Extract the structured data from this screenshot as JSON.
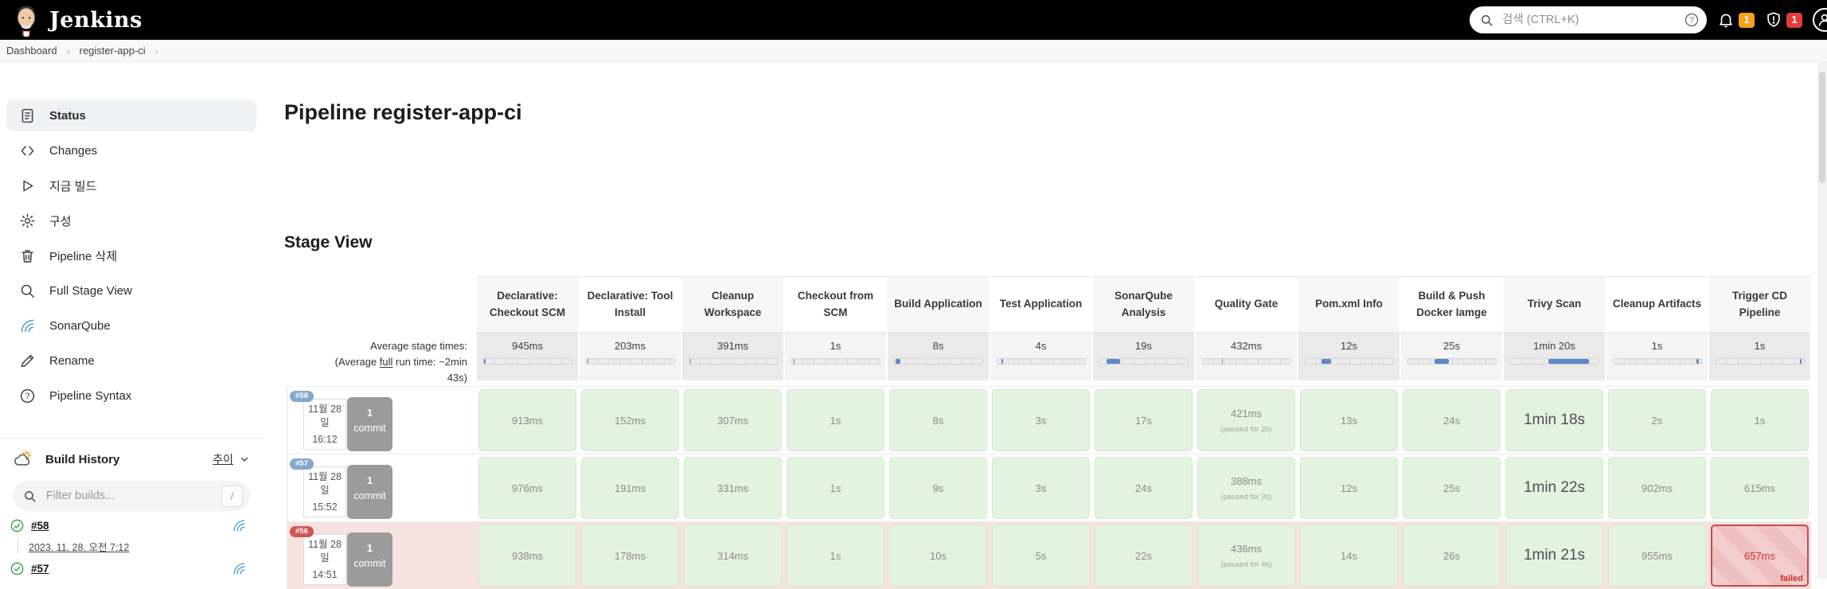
{
  "header": {
    "brand": "Jenkins",
    "search_placeholder": "검색 (CTRL+K)",
    "notification_count": "1",
    "security_count": "1"
  },
  "breadcrumb": {
    "items": [
      "Dashboard",
      "register-app-ci"
    ]
  },
  "sidebar": {
    "items": [
      {
        "label": "Status",
        "icon": "status",
        "selected": true
      },
      {
        "label": "Changes",
        "icon": "code",
        "selected": false
      },
      {
        "label": "지금 빌드",
        "icon": "play",
        "selected": false
      },
      {
        "label": "구성",
        "icon": "gear",
        "selected": false
      },
      {
        "label": "Pipeline 삭제",
        "icon": "trash",
        "selected": false
      },
      {
        "label": "Full Stage View",
        "icon": "search",
        "selected": false
      },
      {
        "label": "SonarQube",
        "icon": "waves",
        "selected": false
      },
      {
        "label": "Rename",
        "icon": "pencil",
        "selected": false
      },
      {
        "label": "Pipeline Syntax",
        "icon": "question",
        "selected": false
      }
    ],
    "build_history": {
      "title": "Build History",
      "trend_label": "추이",
      "filter_placeholder": "Filter builds...",
      "filter_key_hint": "/",
      "builds": [
        {
          "id": "#58",
          "status": "success",
          "timestamp": "2023. 11. 28. 오전 7:12"
        },
        {
          "id": "#57",
          "status": "success",
          "timestamp": ""
        }
      ]
    }
  },
  "main": {
    "page_title": "Pipeline register-app-ci",
    "section_title": "Stage View",
    "stage_view": {
      "columns": [
        "Declarative: Checkout SCM",
        "Declarative: Tool Install",
        "Cleanup Workspace",
        "Checkout from SCM",
        "Build Application",
        "Test Application",
        "SonarQube Analysis",
        "Quality Gate",
        "Pom.xml Info",
        "Build & Push Docker Iamge",
        "Trivy Scan",
        "Cleanup Artifacts",
        "Trigger CD Pipeline"
      ],
      "average_label": "Average stage times:",
      "average_note_prefix": "(Average ",
      "average_note_underlined": "full",
      "average_note_suffix": " run time: ~2min 43s)",
      "averages": [
        {
          "value": "945ms",
          "bar": {
            "start": 0,
            "width": 2
          }
        },
        {
          "value": "203ms",
          "bar": {
            "start": 1,
            "width": 1
          }
        },
        {
          "value": "391ms",
          "bar": {
            "start": 1,
            "width": 1
          }
        },
        {
          "value": "1s",
          "bar": {
            "start": 2,
            "width": 1.5
          }
        },
        {
          "value": "8s",
          "bar": {
            "start": 1,
            "width": 6
          }
        },
        {
          "value": "4s",
          "bar": {
            "start": 5,
            "width": 2
          }
        },
        {
          "value": "19s",
          "bar": {
            "start": 8,
            "width": 15
          }
        },
        {
          "value": "432ms",
          "bar": {
            "start": 22,
            "width": 1.5
          }
        },
        {
          "value": "12s",
          "bar": {
            "start": 19,
            "width": 11
          }
        },
        {
          "value": "25s",
          "bar": {
            "start": 30,
            "width": 17
          }
        },
        {
          "value": "1min 20s",
          "bar": {
            "start": 43,
            "width": 47
          }
        },
        {
          "value": "1s",
          "bar": {
            "start": 95,
            "width": 2.5
          }
        },
        {
          "value": "1s",
          "bar": {
            "start": 96,
            "width": 2
          }
        }
      ],
      "builds": [
        {
          "id": "#58",
          "failed": false,
          "date": "11월 28일",
          "time": "16:12",
          "commit_count": "1",
          "commit_label": "commit",
          "cells": [
            {
              "value": "913ms"
            },
            {
              "value": "152ms"
            },
            {
              "value": "307ms"
            },
            {
              "value": "1s"
            },
            {
              "value": "8s"
            },
            {
              "value": "3s"
            },
            {
              "value": "17s"
            },
            {
              "value": "421ms",
              "note": "(paused for 2s)"
            },
            {
              "value": "13s"
            },
            {
              "value": "24s"
            },
            {
              "value": "1min 18s",
              "emphasis": true
            },
            {
              "value": "2s"
            },
            {
              "value": "1s"
            }
          ]
        },
        {
          "id": "#57",
          "failed": false,
          "date": "11월 28일",
          "time": "15:52",
          "commit_count": "1",
          "commit_label": "commit",
          "cells": [
            {
              "value": "976ms"
            },
            {
              "value": "191ms"
            },
            {
              "value": "331ms"
            },
            {
              "value": "1s"
            },
            {
              "value": "9s"
            },
            {
              "value": "3s"
            },
            {
              "value": "24s"
            },
            {
              "value": "388ms",
              "note": "(paused for 3s)"
            },
            {
              "value": "12s"
            },
            {
              "value": "25s"
            },
            {
              "value": "1min 22s",
              "emphasis": true
            },
            {
              "value": "902ms"
            },
            {
              "value": "615ms"
            }
          ]
        },
        {
          "id": "#56",
          "failed": true,
          "date": "11월 28일",
          "time": "14:51",
          "commit_count": "1",
          "commit_label": "commit",
          "cells": [
            {
              "value": "938ms"
            },
            {
              "value": "178ms"
            },
            {
              "value": "314ms"
            },
            {
              "value": "1s"
            },
            {
              "value": "10s"
            },
            {
              "value": "5s"
            },
            {
              "value": "22s"
            },
            {
              "value": "436ms",
              "note": "(paused for 4s)"
            },
            {
              "value": "14s"
            },
            {
              "value": "26s"
            },
            {
              "value": "1min 21s",
              "emphasis": true
            },
            {
              "value": "955ms"
            },
            {
              "value": "657ms",
              "failed": true,
              "fail_label": "failed"
            }
          ]
        }
      ]
    }
  },
  "colors": {
    "success_cell": "#e4f3e0",
    "failed_row": "#f6e3df",
    "failed_border": "#c64b4b",
    "accent_blue": "#5d87c9",
    "badge_warn": "#f5a11c",
    "badge_danger": "#e23b3b",
    "pill_success": "#84a9cc",
    "pill_failed": "#d25555"
  }
}
